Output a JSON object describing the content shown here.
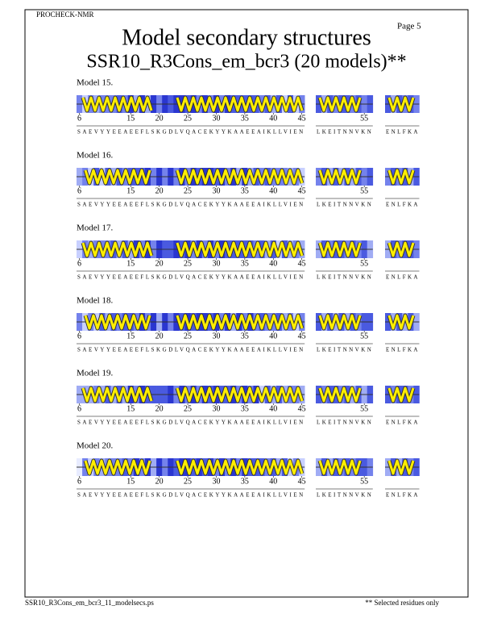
{
  "header": {
    "program": "PROCHECK-NMR",
    "page": "Page  5",
    "title": "Model secondary structures",
    "subtitle": "SSR10_R3Cons_em_bcr3 (20 models)**"
  },
  "models": [
    "Model 15.",
    "Model 16.",
    "Model 17.",
    "Model 18.",
    "Model 19.",
    "Model 20."
  ],
  "residue_ticks": [
    6,
    15,
    20,
    25,
    30,
    35,
    40,
    45,
    55
  ],
  "sequence_segments": [
    "SAEVYYEEAEEFLSKGDLVQACEKYYKAAEEAIKLLVIEN",
    "LKEITNNVKN",
    "ENLFKA"
  ],
  "footer": {
    "file": "SSR10_R3Cons_em_bcr3_11_modelsecs.ps",
    "note": "** Selected residues only"
  }
}
